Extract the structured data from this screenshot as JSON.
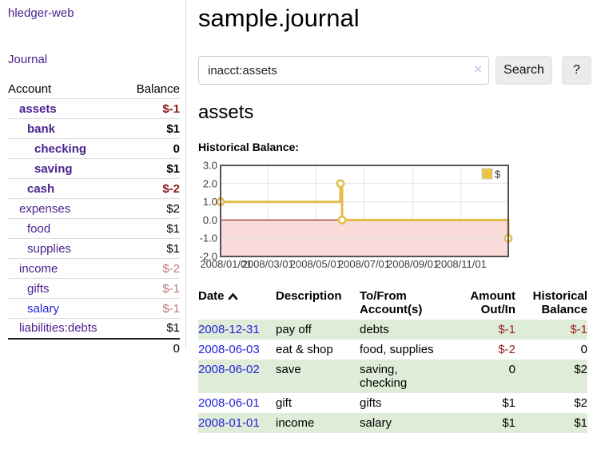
{
  "app": {
    "title": "hledger-web"
  },
  "sidebar": {
    "journal_link": "Journal",
    "table": {
      "headers": {
        "account": "Account",
        "balance": "Balance"
      },
      "rows": [
        {
          "name": "assets",
          "depth": 1,
          "bold": true,
          "balance": "$-1",
          "link_color": "purple"
        },
        {
          "name": "bank",
          "depth": 2,
          "bold": true,
          "balance": "$1",
          "link_color": "purple"
        },
        {
          "name": "checking",
          "depth": 3,
          "bold": true,
          "balance": "0",
          "link_color": "purple"
        },
        {
          "name": "saving",
          "depth": 3,
          "bold": true,
          "balance": "$1",
          "link_color": "purple"
        },
        {
          "name": "cash",
          "depth": 2,
          "bold": true,
          "balance": "$-2",
          "link_color": "purple"
        },
        {
          "name": "expenses",
          "depth": 1,
          "bold": false,
          "balance": "$2",
          "link_color": "purple"
        },
        {
          "name": "food",
          "depth": 2,
          "bold": false,
          "balance": "$1",
          "link_color": "purple"
        },
        {
          "name": "supplies",
          "depth": 2,
          "bold": false,
          "balance": "$1",
          "link_color": "purple"
        },
        {
          "name": "income",
          "depth": 1,
          "bold": false,
          "balance": "$-2",
          "link_color": "purple"
        },
        {
          "name": "gifts",
          "depth": 2,
          "bold": false,
          "balance": "$-1",
          "link_color": "purple"
        },
        {
          "name": "salary",
          "depth": 2,
          "bold": false,
          "balance": "$-1",
          "link_color": "blue"
        },
        {
          "name": "liabilities:debts",
          "depth": 1,
          "bold": false,
          "balance": "$1",
          "link_color": "purple"
        }
      ],
      "total": "0"
    }
  },
  "main": {
    "title": "sample.journal",
    "search": {
      "value": "inacct:assets",
      "clear_icon": "×",
      "button_label": "Search",
      "help_label": "?"
    },
    "section_title": "assets",
    "chart_label": "Historical Balance:",
    "chart_data": {
      "type": "line",
      "title": "Historical Balance:",
      "step": true,
      "series": [
        {
          "name": "$",
          "color": "#edc240",
          "points": [
            {
              "x": "2008-01-01",
              "y": 1
            },
            {
              "x": "2008-06-01",
              "y": 2
            },
            {
              "x": "2008-06-02",
              "y": 2
            },
            {
              "x": "2008-06-03",
              "y": 0
            },
            {
              "x": "2008-12-31",
              "y": -1
            }
          ]
        }
      ],
      "ylim": [
        -2,
        3
      ],
      "yticks": [
        "3.0",
        "2.0",
        "1.0",
        "0.0",
        "-1.0",
        "-2.0"
      ],
      "xticks": [
        "2008/01/01",
        "2008/03/01",
        "2008/05/01",
        "2008/07/01",
        "2008/09/01",
        "2008/11/01"
      ],
      "grid": true,
      "legend_position": "top-right",
      "legend_label": "$",
      "negative_region_fill": "#fbdada",
      "zero_line_color": "#a52a2a"
    },
    "register": {
      "headers": {
        "date": "Date",
        "description": "Description",
        "accounts": "To/From Account(s)",
        "amount": "Amount Out/In",
        "balance": "Historical Balance"
      },
      "sort_icon": "chevron-up",
      "rows": [
        {
          "date": "2008-12-31",
          "description": "pay off",
          "accounts": "debts",
          "amount": "$-1",
          "balance": "$-1",
          "green": true
        },
        {
          "date": "2008-06-03",
          "description": "eat & shop",
          "accounts": "food, supplies",
          "amount": "$-2",
          "balance": "0",
          "green": false
        },
        {
          "date": "2008-06-02",
          "description": "save",
          "accounts": "saving,\nchecking",
          "amount": "0",
          "balance": "$2",
          "green": true
        },
        {
          "date": "2008-06-01",
          "description": "gift",
          "accounts": "gifts",
          "amount": "$1",
          "balance": "$2",
          "green": false
        },
        {
          "date": "2008-01-01",
          "description": "income",
          "accounts": "salary",
          "amount": "$1",
          "balance": "$1",
          "green": true
        }
      ]
    }
  },
  "colors": {
    "link_purple": "#4a238f",
    "link_blue": "#2323d9",
    "negative_strong": "#8b1a1a",
    "negative_light": "#b87a7a",
    "negative_table": "#9b2323",
    "row_green": "#dfecd8",
    "series_gold": "#edc240"
  }
}
